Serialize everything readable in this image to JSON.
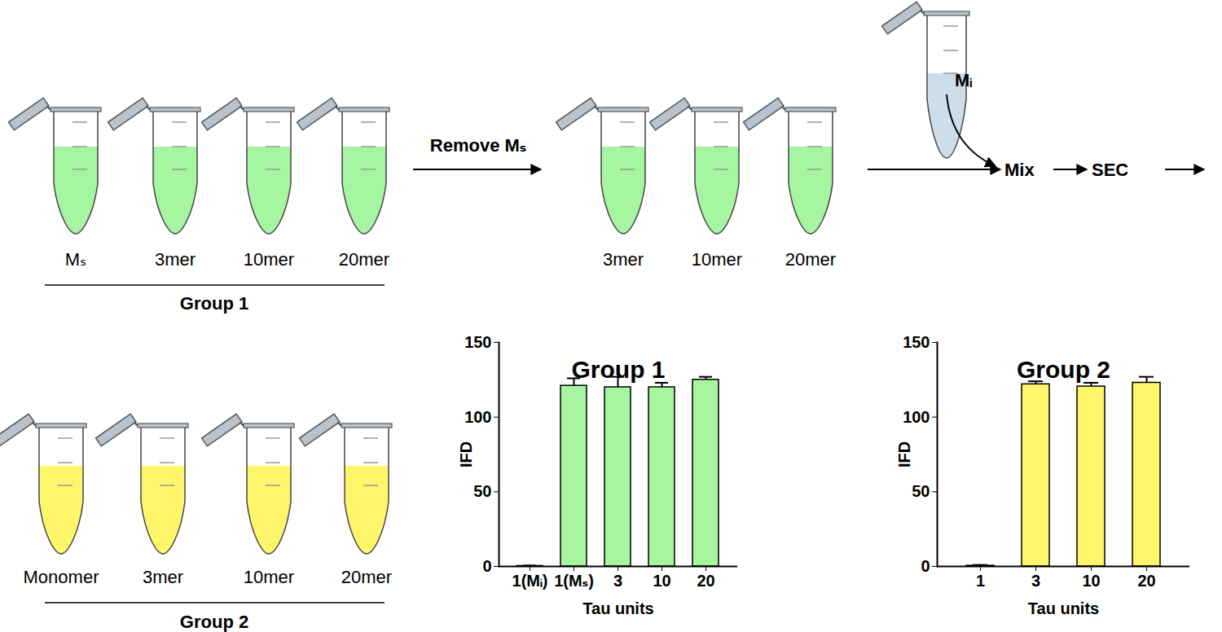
{
  "chart_data": [
    {
      "type": "bar",
      "title": "Group 1",
      "x_label": "Tau units",
      "y_label": "IFD",
      "categories": [
        "1(Mᵢ)",
        "1(Mₛ)",
        "3",
        "10",
        "20"
      ],
      "values": [
        0.3,
        121,
        120,
        120,
        125
      ],
      "errors": [
        0.3,
        5,
        7,
        3,
        2
      ],
      "color": "#a8f5a0",
      "ylim": [
        0,
        150
      ],
      "yticks": [
        0,
        50,
        100,
        150
      ]
    },
    {
      "type": "bar",
      "title": "Group 2",
      "x_label": "Tau units",
      "y_label": "IFD",
      "categories": [
        "1",
        "3",
        "10",
        "20"
      ],
      "values": [
        0.5,
        122,
        120.5,
        123
      ],
      "errors": [
        0.5,
        2,
        2.5,
        4
      ],
      "color": "#fff56a",
      "ylim": [
        0,
        150
      ],
      "yticks": [
        0,
        50,
        100,
        150
      ]
    }
  ],
  "diagram": {
    "group1": {
      "label": "Group 1",
      "tubes": [
        "Mₛ",
        "3mer",
        "10mer",
        "20mer"
      ],
      "color": "#a6f5a0"
    },
    "step": "Remove Mₛ",
    "remaining_tubes": [
      "3mer",
      "10mer",
      "20mer"
    ],
    "added": {
      "label": "Mᵢ",
      "color": "#cddde9"
    },
    "flow": [
      "Mix",
      "SEC"
    ],
    "group2": {
      "label": "Group 2",
      "tubes": [
        "Monomer",
        "3mer",
        "10mer",
        "20mer"
      ],
      "color": "#fff56a"
    }
  }
}
